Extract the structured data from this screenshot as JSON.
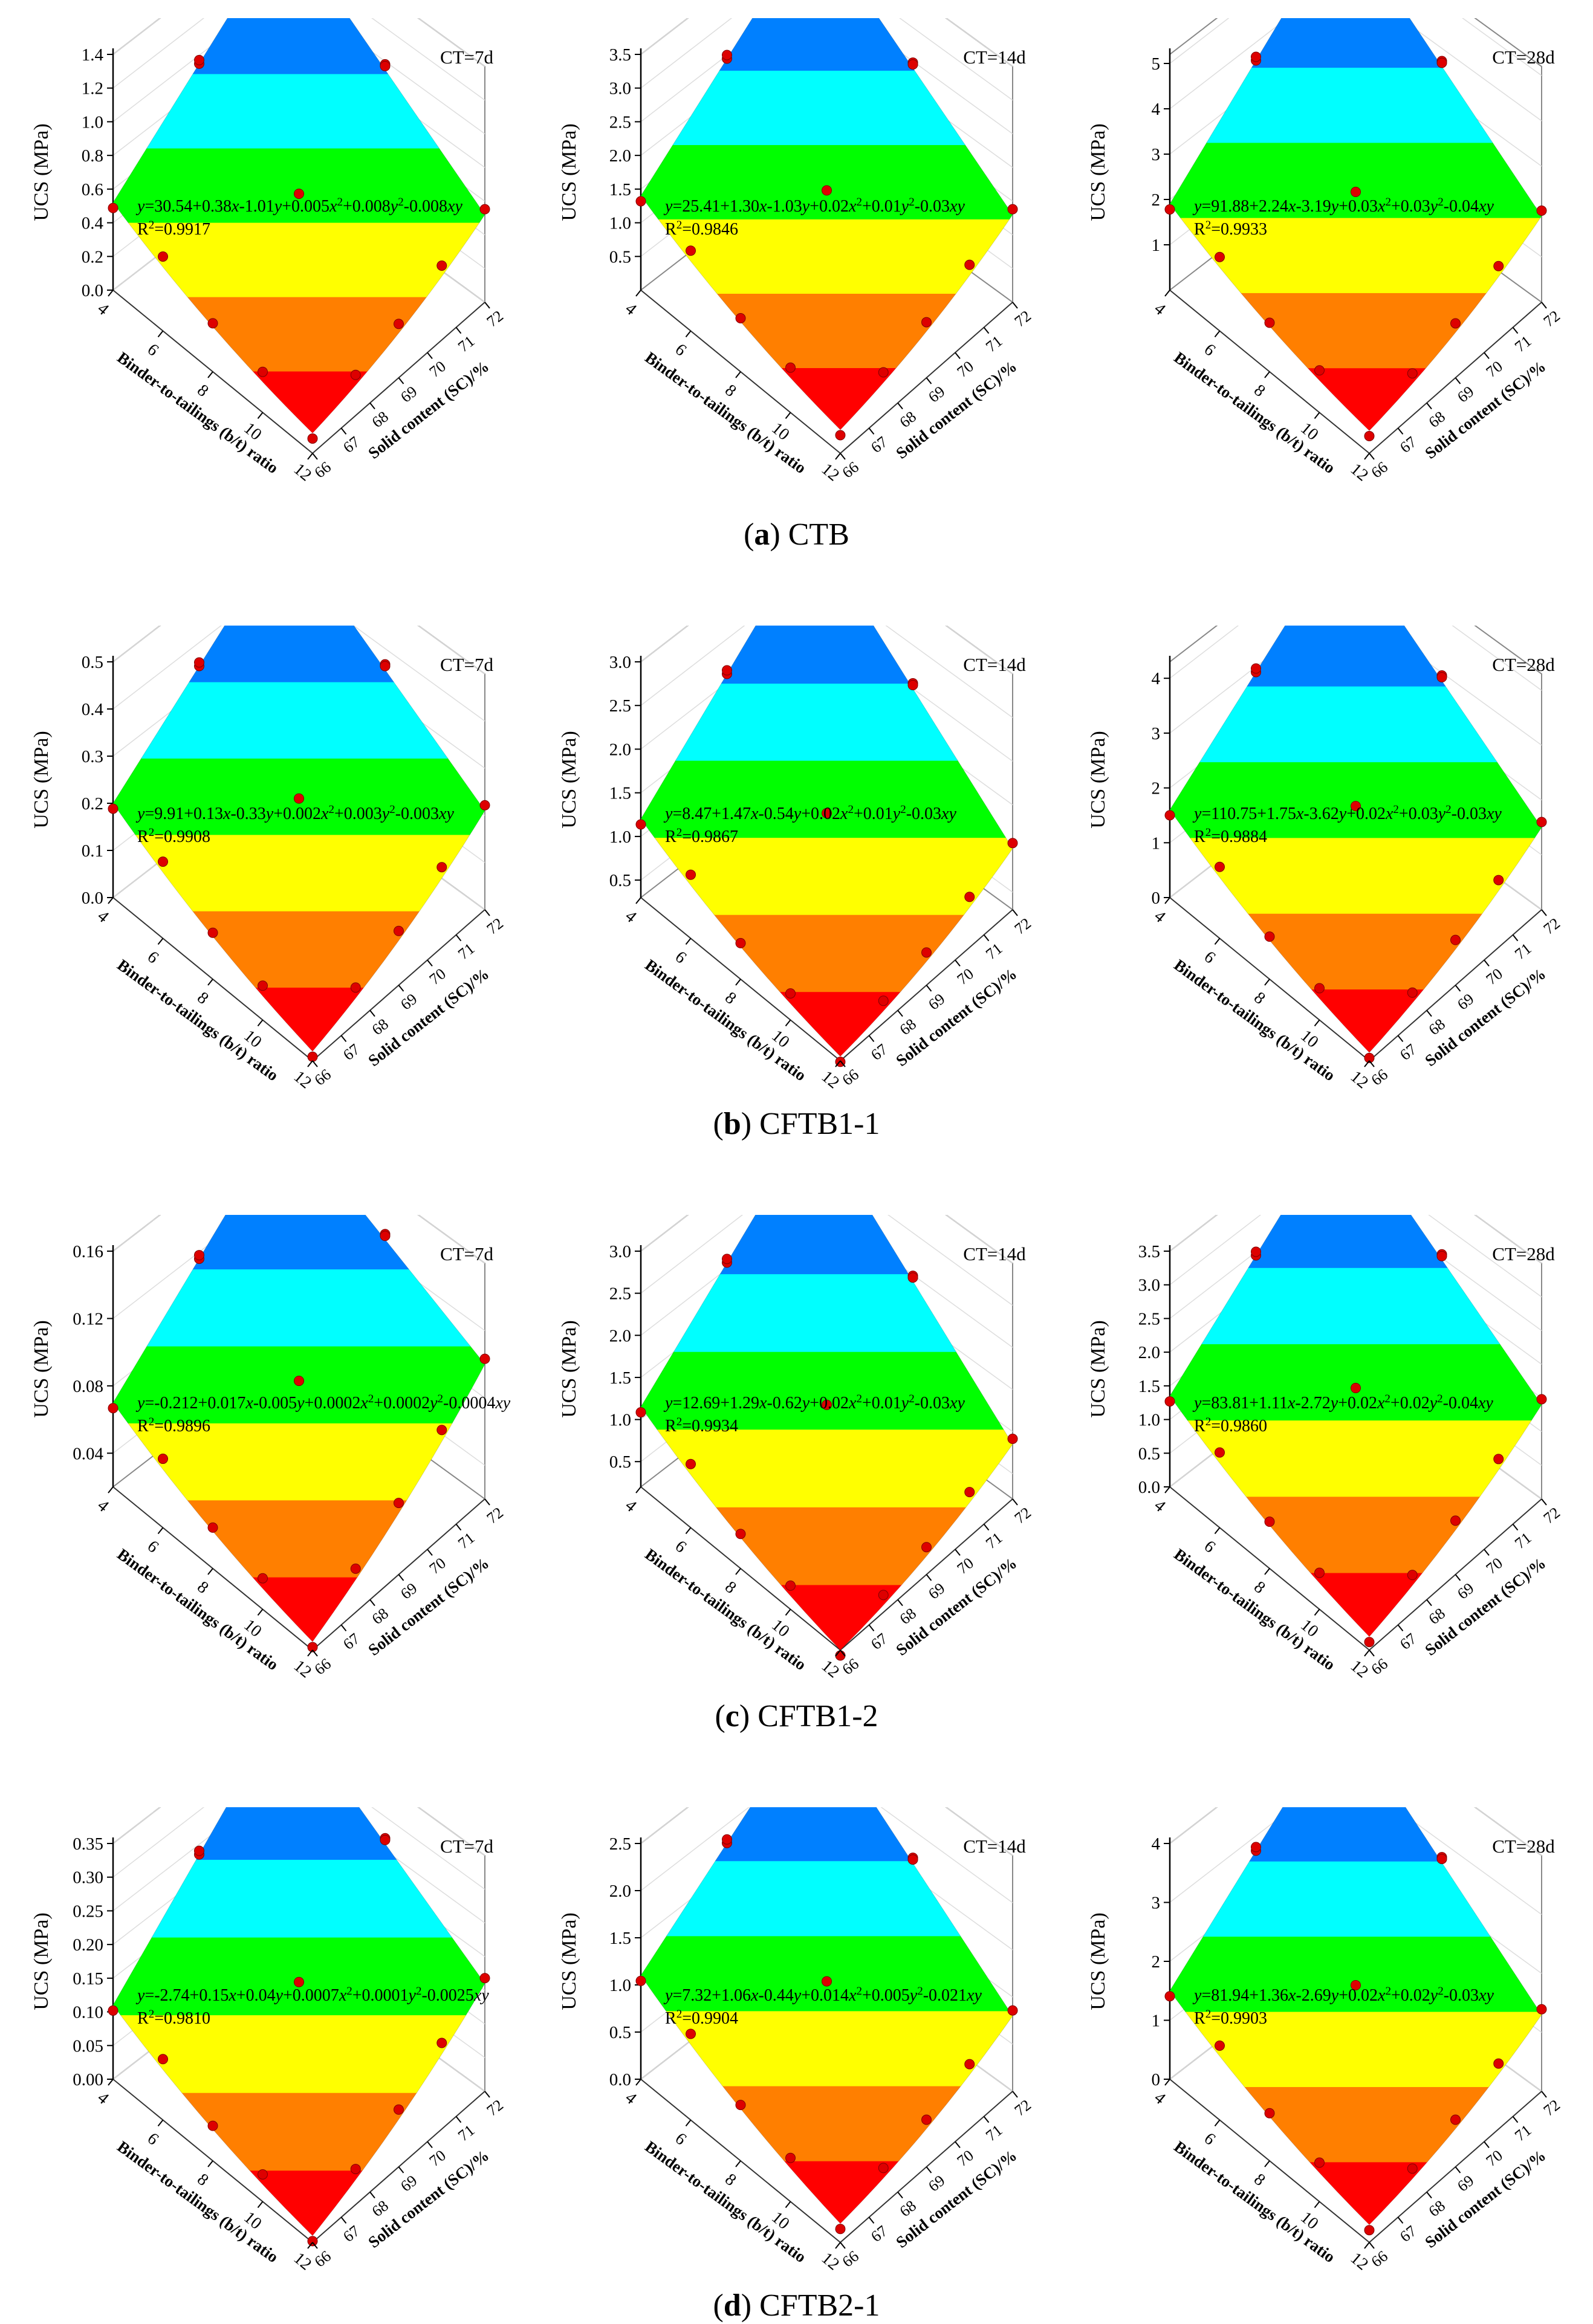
{
  "figure": {
    "z_axis_label": "UCS (MPa)",
    "x_axis_label": "Binder-to-tailings (b/t) ratio",
    "y_axis_label": "Solid content (SC)/%",
    "x_ticks": [
      "4",
      "6",
      "8",
      "10",
      "12"
    ],
    "y_ticks": [
      "66",
      "67",
      "68",
      "69",
      "70",
      "71",
      "72"
    ],
    "band_colors": [
      "#ff0000",
      "#ff7f00",
      "#ffff00",
      "#00ff00",
      "#00ffff",
      "#0080ff",
      "#0000ff"
    ],
    "marker_color": "#dd0000"
  },
  "chart_data": [
    {
      "type": "surface3d",
      "group": "CTB",
      "caption_label": "a",
      "caption_name": "CTB",
      "panels": [
        {
          "ct": "CT=7d",
          "zlim": [
            0,
            1.4
          ],
          "zticks": [
            "0.0",
            "0.2",
            "0.4",
            "0.6",
            "0.8",
            "1.0",
            "1.2",
            "1.4"
          ],
          "eq_prefix": "=30.54+0.38",
          "eq_mid": "-1.01",
          "eq_c1": "+0.005",
          "eq_c2": "+0.008",
          "eq_c3": "-0.008",
          "r2": "=0.9917",
          "z_corners": [
            0.52,
            0.12,
            0.52,
            1.38
          ]
        },
        {
          "ct": "CT=14d",
          "zlim": [
            0,
            3.5
          ],
          "zticks": [
            "0.5",
            "1.0",
            "1.5",
            "2.0",
            "2.5",
            "3.0",
            "3.5"
          ],
          "eq_prefix": "=25.41+1.30",
          "eq_mid": "-1.03",
          "eq_c1": "+0.02",
          "eq_c2": "+0.01",
          "eq_c3": "-0.03",
          "r2": "=0.9846",
          "z_corners": [
            1.4,
            0.35,
            1.3,
            3.5
          ]
        },
        {
          "ct": "CT=28d",
          "zlim": [
            0,
            5.2
          ],
          "zticks": [
            "1",
            "2",
            "3",
            "4",
            "5"
          ],
          "eq_prefix": "=91.88+2.24",
          "eq_mid": "-3.19",
          "eq_c1": "+0.03",
          "eq_c2": "+0.03",
          "eq_c3": "-0.04",
          "r2": "=0.9933",
          "z_corners": [
            1.9,
            0.5,
            1.9,
            5.3
          ]
        }
      ]
    },
    {
      "type": "surface3d",
      "group": "CFTB1-1",
      "caption_label": "b",
      "caption_name": "CFTB1-1",
      "panels": [
        {
          "ct": "CT=7d",
          "zlim": [
            0,
            0.5
          ],
          "zticks": [
            "0.0",
            "0.1",
            "0.2",
            "0.3",
            "0.4",
            "0.5"
          ],
          "eq_prefix": "=9.91+0.13",
          "eq_mid": "-0.33",
          "eq_c1": "+0.002",
          "eq_c2": "+0.003",
          "eq_c3": "-0.003",
          "r2": "=0.9908",
          "z_corners": [
            0.2,
            0.02,
            0.21,
            0.5
          ]
        },
        {
          "ct": "CT=14d",
          "zlim": [
            0.3,
            3.0
          ],
          "zticks": [
            "0.5",
            "1.0",
            "1.5",
            "2.0",
            "2.5",
            "3.0"
          ],
          "eq_prefix": "=8.47+1.47",
          "eq_mid": "-0.54",
          "eq_c1": "+0.02",
          "eq_c2": "+0.01",
          "eq_c3": "-0.03",
          "r2": "=0.9867",
          "z_corners": [
            1.2,
            0.35,
            1.0,
            3.0
          ]
        },
        {
          "ct": "CT=28d",
          "zlim": [
            0,
            4.3
          ],
          "zticks": [
            "0",
            "1",
            "2",
            "3",
            "4"
          ],
          "eq_prefix": "=110.75+1.75",
          "eq_mid": "-3.62",
          "eq_c1": "+0.02",
          "eq_c2": "+0.03",
          "eq_c3": "-0.03",
          "r2": "=0.9884",
          "z_corners": [
            1.6,
            0.15,
            1.5,
            4.2
          ]
        }
      ]
    },
    {
      "type": "surface3d",
      "group": "CFTB1-2",
      "caption_label": "c",
      "caption_name": "CFTB1-2",
      "panels": [
        {
          "ct": "CT=7d",
          "zlim": [
            0.02,
            0.16
          ],
          "zticks": [
            "0.04",
            "0.08",
            "0.12",
            "0.16"
          ],
          "eq_prefix": "=-0.212+0.017",
          "eq_mid": "-0.005",
          "eq_c1": "+0.0002",
          "eq_c2": "+0.0002",
          "eq_c3": "-0.0004",
          "r2": "=0.9896",
          "z_corners": [
            0.07,
            0.025,
            0.1,
            0.162
          ]
        },
        {
          "ct": "CT=14d",
          "zlim": [
            0.2,
            3.0
          ],
          "zticks": [
            "0.5",
            "1.0",
            "1.5",
            "2.0",
            "2.5",
            "3.0"
          ],
          "eq_prefix": "=12.69+1.29",
          "eq_mid": "-0.62",
          "eq_c1": "+0.02",
          "eq_c2": "+0.01",
          "eq_c3": "-0.03",
          "r2": "=0.9934",
          "z_corners": [
            1.15,
            0.2,
            0.85,
            3.0
          ]
        },
        {
          "ct": "CT=28d",
          "zlim": [
            0,
            3.5
          ],
          "zticks": [
            "0.0",
            "0.5",
            "1.0",
            "1.5",
            "2.0",
            "2.5",
            "3.0",
            "3.5"
          ],
          "eq_prefix": "=83.81+1.11",
          "eq_mid": "-2.72",
          "eq_c1": "+0.02",
          "eq_c2": "+0.02",
          "eq_c3": "-0.04",
          "r2": "=0.9860",
          "z_corners": [
            1.35,
            0.2,
            1.4,
            3.55
          ]
        }
      ]
    },
    {
      "type": "surface3d",
      "group": "CFTB2-1",
      "caption_label": "d",
      "caption_name": "CFTB2-1",
      "panels": [
        {
          "ct": "CT=7d",
          "zlim": [
            0,
            0.35
          ],
          "zticks": [
            "0.00",
            "0.05",
            "0.10",
            "0.15",
            "0.20",
            "0.25",
            "0.30",
            "0.35"
          ],
          "eq_prefix": "=-2.74+0.15",
          "eq_mid": "+0.04",
          "eq_c1": "+0.0007",
          "eq_c2": "+0.0001",
          "eq_c3": "-0.0025",
          "r2": "=0.9810",
          "z_corners": [
            0.11,
            0.01,
            0.16,
            0.36
          ]
        },
        {
          "ct": "CT=14d",
          "zlim": [
            0,
            2.5
          ],
          "zticks": [
            "0.0",
            "0.5",
            "1.0",
            "1.5",
            "2.0",
            "2.5"
          ],
          "eq_prefix": "=7.32+1.06",
          "eq_mid": "-0.44",
          "eq_c1": "+0.014",
          "eq_c2": "+0.005",
          "eq_c3": "-0.021",
          "r2": "=0.9904",
          "z_corners": [
            1.1,
            0.2,
            0.8,
            2.5
          ]
        },
        {
          "ct": "CT=28d",
          "zlim": [
            0,
            4.0
          ],
          "zticks": [
            "0",
            "1",
            "2",
            "3",
            "4"
          ],
          "eq_prefix": "=81.94+1.36",
          "eq_mid": "-2.69",
          "eq_c1": "+0.02",
          "eq_c2": "+0.02",
          "eq_c3": "-0.03",
          "r2": "=0.9903",
          "z_corners": [
            1.5,
            0.3,
            1.3,
            4.0
          ]
        }
      ]
    }
  ]
}
